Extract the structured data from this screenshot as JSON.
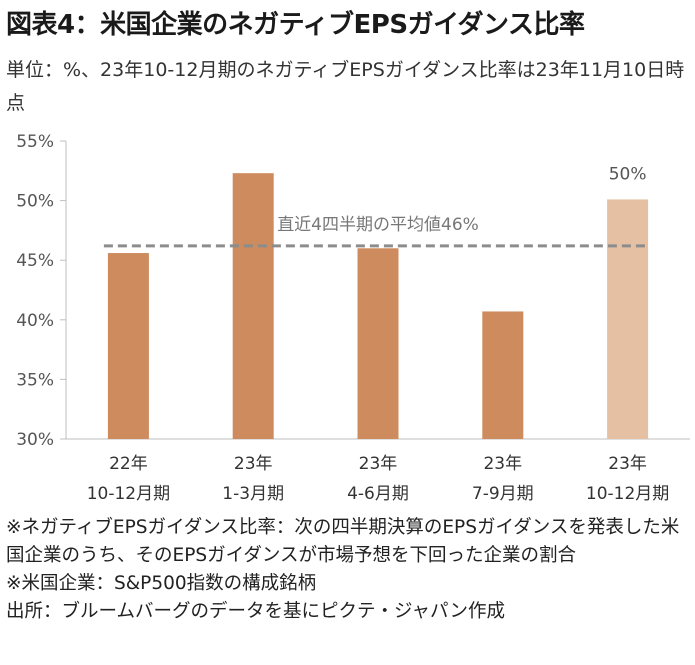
{
  "title": "図表4：米国企業のネガティブEPSガイダンス比率",
  "subtitle": "単位：%、23年10-12月期のネガティブEPSガイダンス比率は23年11月10日時点",
  "chart_data": {
    "type": "bar",
    "categories": [
      [
        "22年",
        "10-12月期"
      ],
      [
        "23年",
        "1-3月期"
      ],
      [
        "23年",
        "4-6月期"
      ],
      [
        "23年",
        "7-9月期"
      ],
      [
        "23年",
        "10-12月期"
      ]
    ],
    "values": [
      45.6,
      52.3,
      46.0,
      40.7,
      50.1
    ],
    "data_labels": [
      "",
      "",
      "",
      "",
      "50%"
    ],
    "bar_colors": [
      "#cd8b5e",
      "#cd8b5e",
      "#cd8b5e",
      "#cd8b5e",
      "#e5c0a2"
    ],
    "ylim": [
      30,
      55
    ],
    "yticks": [
      30,
      35,
      40,
      45,
      50,
      55
    ],
    "ytick_labels": [
      "30%",
      "35%",
      "40%",
      "45%",
      "50%",
      "55%"
    ],
    "reference_line": {
      "value": 46.2,
      "label": "直近4四半期の平均値46%",
      "color": "#8c8c8c"
    },
    "grid": false
  },
  "notes": [
    "※ネガティブEPSガイダンス比率：次の四半期決算のEPSガイダンスを発表した米国企業のうち、そのEPSガイダンスが市場予想を下回った企業の割合",
    "※米国企業：S&P500指数の構成銘柄",
    "出所：ブルームバーグのデータを基にピクテ・ジャパン作成"
  ]
}
